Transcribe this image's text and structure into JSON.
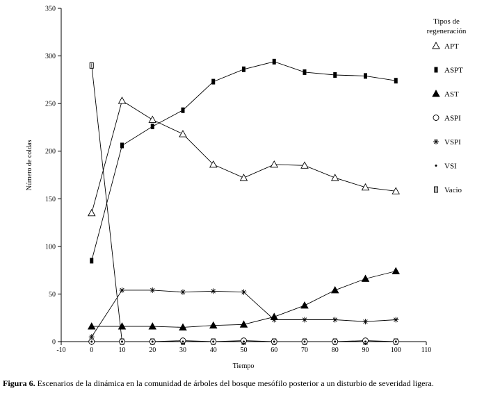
{
  "chart_data": {
    "type": "line",
    "xlabel": "Tiempo",
    "ylabel": "Número de coldas",
    "xlim": [
      -10,
      110
    ],
    "ylim": [
      0,
      350
    ],
    "xticks": [
      -10,
      0,
      10,
      20,
      30,
      40,
      50,
      60,
      70,
      80,
      90,
      100,
      110
    ],
    "yticks": [
      0,
      50,
      100,
      150,
      200,
      250,
      300,
      350
    ],
    "grid": false,
    "legend_title": "Tipos de regeneración",
    "legend_position": "right",
    "x": [
      0,
      10,
      20,
      30,
      40,
      50,
      60,
      70,
      80,
      90,
      100
    ],
    "series": [
      {
        "name": "APT",
        "marker": "triangle-open",
        "values": [
          135,
          253,
          233,
          218,
          186,
          172,
          186,
          185,
          172,
          162,
          158
        ]
      },
      {
        "name": "ASPT",
        "marker": "rect-filled",
        "values": [
          85,
          206,
          226,
          243,
          273,
          286,
          294,
          283,
          280,
          279,
          274
        ]
      },
      {
        "name": "AST",
        "marker": "triangle-filled",
        "values": [
          16,
          16,
          16,
          15,
          17,
          18,
          26,
          38,
          54,
          66,
          74
        ]
      },
      {
        "name": "ASPI",
        "marker": "circle-open",
        "values": [
          0,
          0,
          0,
          1,
          0,
          1,
          0,
          0,
          0,
          1,
          0
        ]
      },
      {
        "name": "VSPI",
        "marker": "asterisk",
        "values": [
          5,
          54,
          54,
          52,
          53,
          52,
          23,
          23,
          23,
          21,
          23
        ]
      },
      {
        "name": "VSI",
        "marker": "dot",
        "values": [
          0,
          0,
          0,
          0,
          0,
          0,
          0,
          0,
          0,
          0,
          0
        ]
      },
      {
        "name": "Vacio",
        "marker": "rect-open",
        "values": [
          290,
          0,
          0,
          0,
          0,
          0,
          0,
          0,
          0,
          0,
          0
        ]
      }
    ]
  },
  "legend_labels": [
    "APT",
    "ASPT",
    "AST",
    "ASPI",
    "VSPI",
    "VSI",
    "Vacio"
  ],
  "caption": {
    "label": "Figura 6.",
    "text": " Escenarios de la dinámica en la comunidad de árboles del bosque mesófilo posterior a un disturbio de severidad ligera."
  }
}
